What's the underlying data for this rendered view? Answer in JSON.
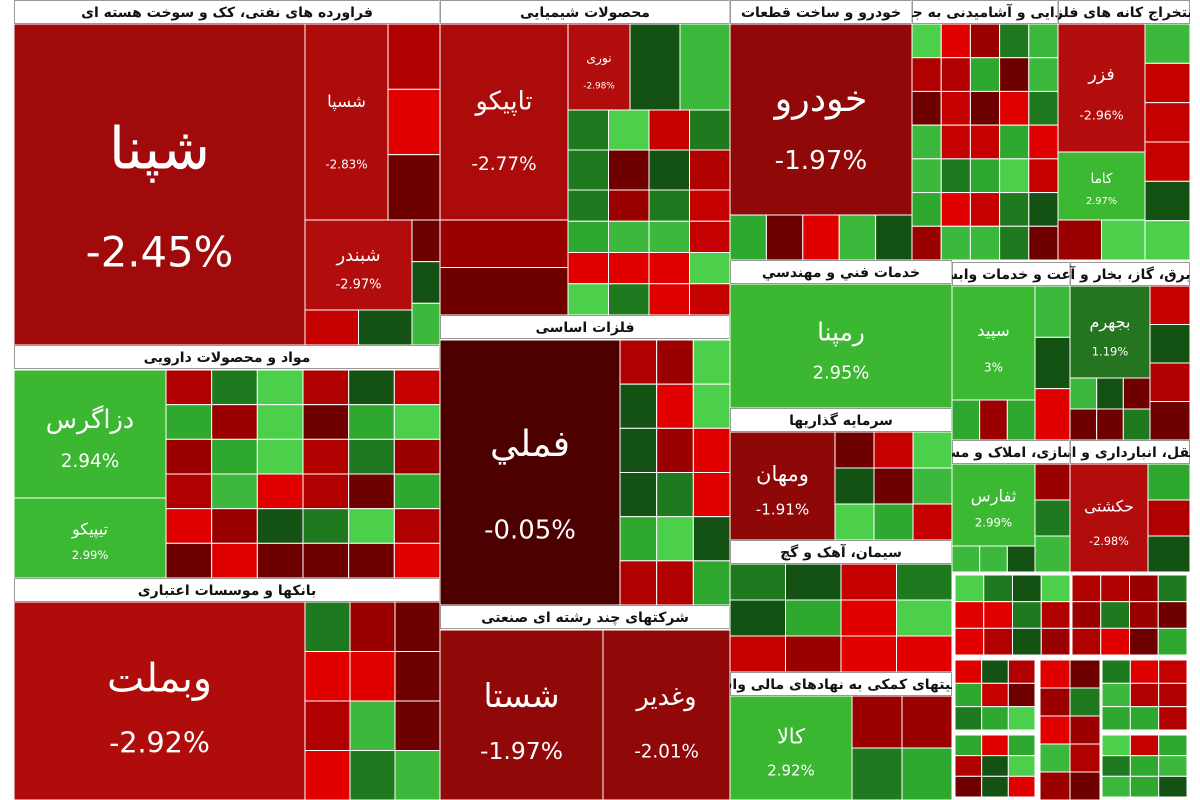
{
  "chart_data": {
    "type": "treemap",
    "sectors": [
      {
        "name": "فراورده های نفتی، کک و سوخت هسته ای",
        "stocks": [
          "شپنا",
          "شسپا",
          "شبندر"
        ],
        "values": [
          -2.45,
          -2.83,
          -2.97
        ],
        "value_labels": [
          "-2.45%",
          "-2.83%",
          "-2.97%"
        ]
      },
      {
        "name": "محصولات شیمیایی",
        "stocks": [
          "تاپیکو",
          "نوری"
        ],
        "values": [
          -2.77,
          -2.98
        ],
        "value_labels": [
          "-2.77%",
          "-2.98%"
        ]
      },
      {
        "name": "خودرو و ساخت قطعات",
        "stocks": [
          "خودرو"
        ],
        "values": [
          -1.97
        ],
        "value_labels": [
          "-1.97%"
        ]
      },
      {
        "name": "محصولات غذایی و آشامیدنی به جز قند و شکر",
        "stocks": [],
        "values": [],
        "value_labels": []
      },
      {
        "name": "استخراج کانه های فلزی",
        "stocks": [
          "فزر",
          "کاما"
        ],
        "values": [
          -2.96,
          2.97
        ],
        "value_labels": [
          "-2.96%",
          "2.97%"
        ]
      },
      {
        "name": "مواد و محصولات دارویی",
        "stocks": [
          "دزاگرس",
          "تیپیکو"
        ],
        "values": [
          2.94,
          2.99
        ],
        "value_labels": [
          "2.94%",
          "2.99%"
        ]
      },
      {
        "name": "بانکها و موسسات اعتباری",
        "stocks": [
          "وبملت"
        ],
        "values": [
          -2.92
        ],
        "value_labels": [
          "-2.92%"
        ]
      },
      {
        "name": "فلزات اساسی",
        "stocks": [
          "فملي"
        ],
        "values": [
          -0.05
        ],
        "value_labels": [
          "-0.05%"
        ]
      },
      {
        "name": "شرکتهای چند رشته ای صنعتی",
        "stocks": [
          "شستا",
          "وغدیر"
        ],
        "values": [
          -1.97,
          -2.01
        ],
        "value_labels": [
          "-1.97%",
          "-2.01%"
        ]
      },
      {
        "name": "خدمات فني و مهندسي",
        "stocks": [
          "رمپنا"
        ],
        "values": [
          2.95
        ],
        "value_labels": [
          "2.95%"
        ]
      },
      {
        "name": "سرمایه گذاریها",
        "stocks": [
          "ومهان"
        ],
        "values": [
          -1.91
        ],
        "value_labels": [
          "-1.91%"
        ]
      },
      {
        "name": "سیمان، آهک و گچ",
        "stocks": [],
        "values": [],
        "value_labels": []
      },
      {
        "name": "فعالیتهای کمکی به نهادهای مالی واسط",
        "stocks": [
          "کالا"
        ],
        "values": [
          2.92
        ],
        "value_labels": [
          "2.92%"
        ]
      },
      {
        "name": "زراعت و خدمات وابسته",
        "stocks": [
          "سپید"
        ],
        "values": [
          3
        ],
        "value_labels": [
          "3%"
        ]
      },
      {
        "name": "انبوه سازی، املاک و مستغلات",
        "stocks": [
          "ثفارس"
        ],
        "values": [
          2.99
        ],
        "value_labels": [
          "2.99%"
        ]
      },
      {
        "name": "عرضه برق، گاز، بخار و آب گرم",
        "stocks": [
          "بجهرم"
        ],
        "values": [
          1.19
        ],
        "value_labels": [
          "1.19%"
        ]
      },
      {
        "name": "حمل و نقل، انبارداری و ارتباطات",
        "stocks": [
          "حکشتی"
        ],
        "values": [
          -2.98
        ],
        "value_labels": [
          "-2.98%"
        ]
      }
    ]
  }
}
